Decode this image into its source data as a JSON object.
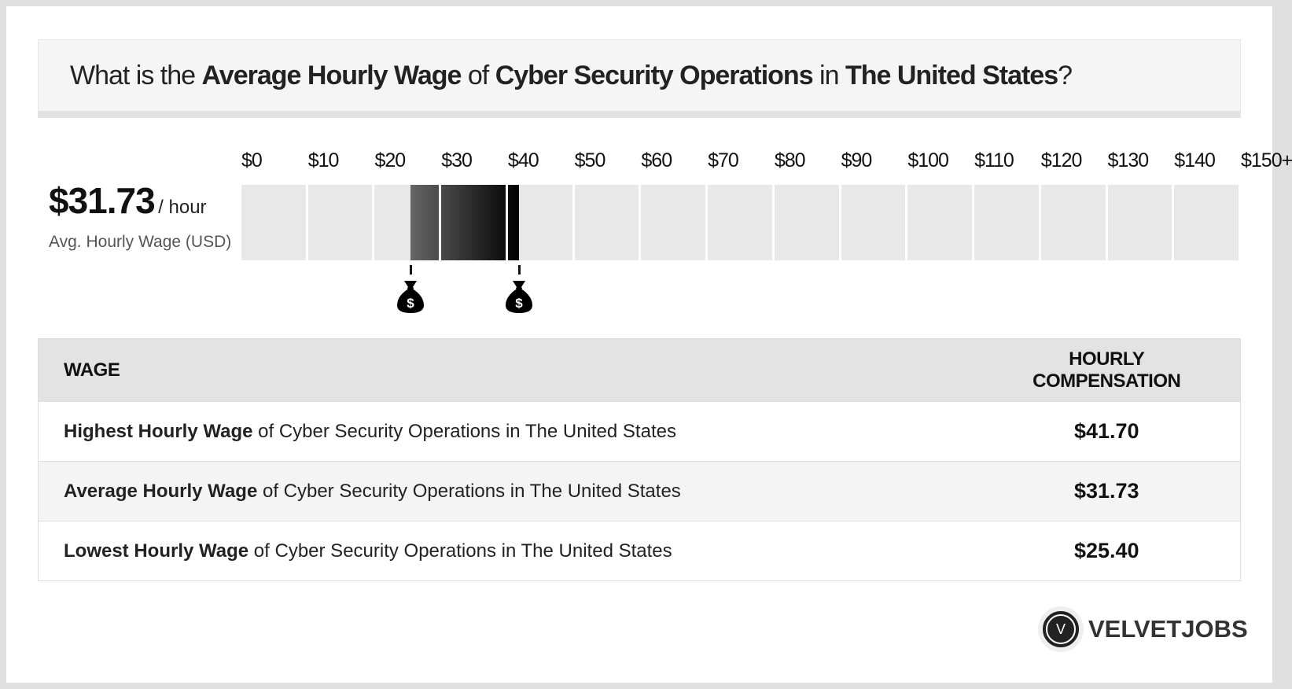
{
  "question": {
    "p1": "What is the ",
    "b1": "Average Hourly Wage",
    "p2": " of ",
    "b2": "Cyber Security Operations",
    "p3": " in ",
    "b3": "The United States",
    "p4": "?"
  },
  "summary": {
    "value": "$31.73",
    "unit": "/ hour",
    "label": "Avg. Hourly Wage (USD)"
  },
  "chart_data": {
    "type": "bar",
    "tick_labels": [
      "$0",
      "$10",
      "$20",
      "$30",
      "$40",
      "$50",
      "$60",
      "$70",
      "$80",
      "$90",
      "$100",
      "$110",
      "$120",
      "$130",
      "$140",
      "$150+"
    ],
    "range_min": 25.4,
    "range_max": 41.7,
    "average": 31.73,
    "xlim": [
      0,
      150
    ]
  },
  "markers": {
    "icon": "money-bag-icon",
    "symbol": "$"
  },
  "table": {
    "headers": [
      "WAGE",
      "HOURLY COMPENSATION"
    ],
    "rows": [
      {
        "bold": "Highest Hourly Wage",
        "rest": " of Cyber Security Operations in The United States",
        "value": "$41.70"
      },
      {
        "bold": "Average Hourly Wage",
        "rest": " of Cyber Security Operations in The United States",
        "value": "$31.73"
      },
      {
        "bold": "Lowest Hourly Wage",
        "rest": " of Cyber Security Operations in The United States",
        "value": "$25.40"
      }
    ]
  },
  "logo": {
    "letter": "V",
    "text": "VELVETJOBS"
  },
  "colors": {
    "bar_bg": "#e8e8e8",
    "fill_start": "#666666",
    "fill_end": "#000000"
  }
}
